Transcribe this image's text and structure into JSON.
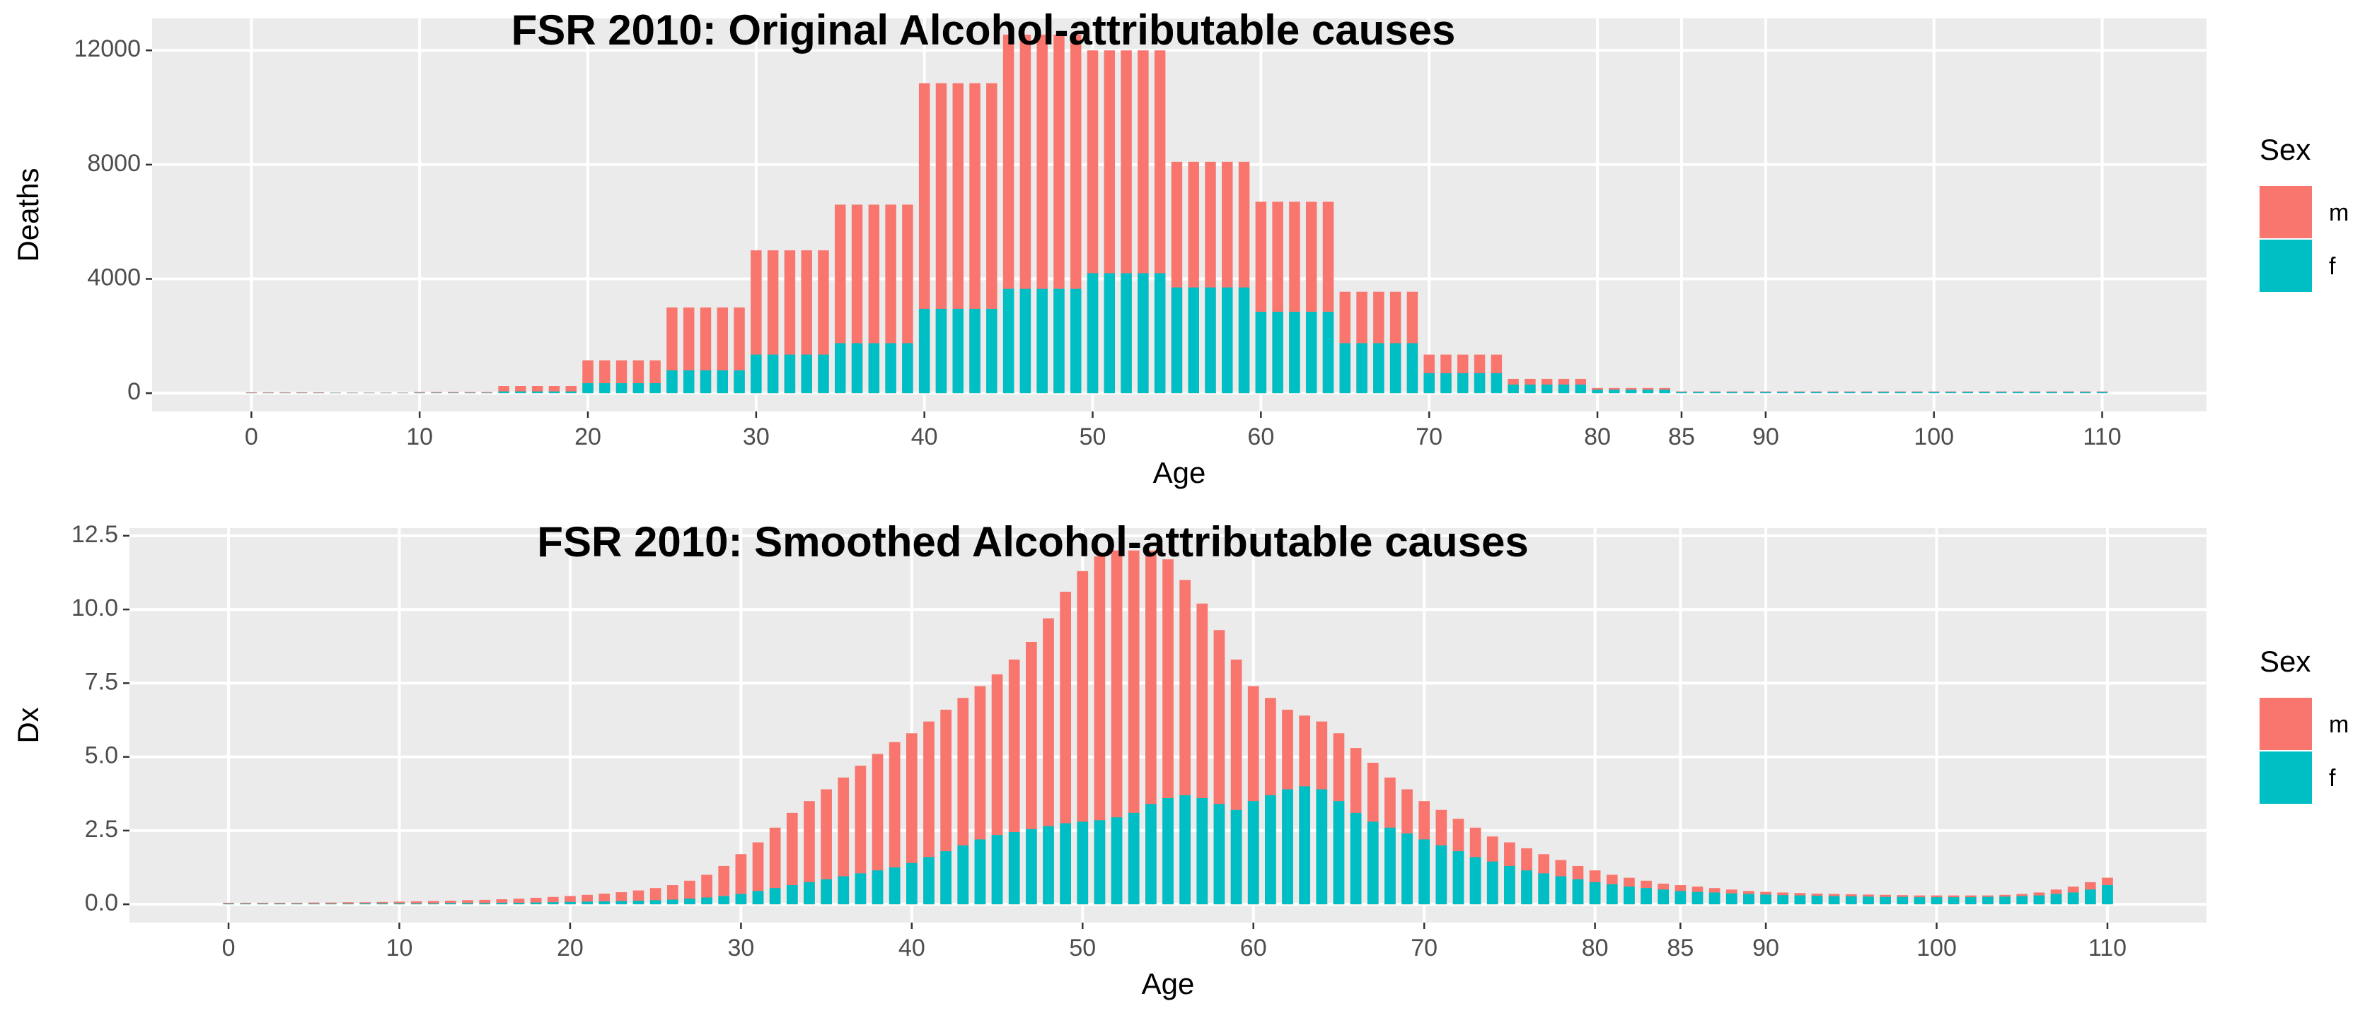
{
  "chart_data": [
    {
      "type": "bar",
      "title": "FSR 2010: Original Alcohol-attributable causes",
      "x_label": "Age",
      "y_label": "Deaths",
      "legend_title": "Sex",
      "grid": true,
      "x": [
        0,
        1,
        2,
        3,
        4,
        5,
        6,
        7,
        8,
        9,
        10,
        11,
        12,
        13,
        14,
        15,
        16,
        17,
        18,
        19,
        20,
        21,
        22,
        23,
        24,
        25,
        26,
        27,
        28,
        29,
        30,
        31,
        32,
        33,
        34,
        35,
        36,
        37,
        38,
        39,
        40,
        41,
        42,
        43,
        44,
        45,
        46,
        47,
        48,
        49,
        50,
        51,
        52,
        53,
        54,
        55,
        56,
        57,
        58,
        59,
        60,
        61,
        62,
        63,
        64,
        65,
        66,
        67,
        68,
        69,
        70,
        71,
        72,
        73,
        74,
        75,
        76,
        77,
        78,
        79,
        80,
        81,
        82,
        83,
        84,
        85,
        86,
        87,
        88,
        89,
        90,
        91,
        92,
        93,
        94,
        95,
        96,
        97,
        98,
        99,
        100,
        101,
        102,
        103,
        104,
        105,
        106,
        107,
        108,
        109,
        110
      ],
      "xlim": [
        -5.9,
        116.2
      ],
      "xticks": [
        0,
        10,
        20,
        30,
        40,
        50,
        60,
        70,
        80,
        85,
        90,
        100,
        110
      ],
      "ylim": [
        -640,
        13120
      ],
      "yticks": [
        0,
        4000,
        8000,
        12000
      ],
      "series": [
        {
          "name": "m",
          "color": "#F8766D",
          "values": [
            30,
            30,
            30,
            30,
            30,
            20,
            20,
            20,
            20,
            20,
            40,
            40,
            40,
            40,
            40,
            250,
            250,
            250,
            250,
            250,
            1150,
            1150,
            1150,
            1150,
            1150,
            3000,
            3000,
            3000,
            3000,
            3000,
            5000,
            5000,
            5000,
            5000,
            5000,
            6600,
            6600,
            6600,
            6600,
            6600,
            10850,
            10850,
            10850,
            10850,
            10850,
            12550,
            12550,
            12550,
            12550,
            12550,
            12000,
            12000,
            12000,
            12000,
            12000,
            8100,
            8100,
            8100,
            8100,
            8100,
            6700,
            6700,
            6700,
            6700,
            6700,
            3550,
            3550,
            3550,
            3550,
            3550,
            1350,
            1350,
            1350,
            1350,
            1350,
            500,
            500,
            500,
            500,
            500,
            180,
            180,
            180,
            180,
            180,
            60,
            60,
            60,
            60,
            60,
            60,
            60,
            60,
            60,
            60,
            60,
            60,
            60,
            60,
            60,
            60,
            60,
            60,
            60,
            60,
            60,
            60,
            60,
            60,
            60,
            60
          ]
        },
        {
          "name": "f",
          "color": "#00BFC4",
          "values": [
            10,
            10,
            10,
            10,
            10,
            10,
            10,
            10,
            10,
            10,
            15,
            15,
            15,
            15,
            15,
            60,
            60,
            60,
            60,
            60,
            350,
            350,
            350,
            350,
            350,
            800,
            800,
            800,
            800,
            800,
            1350,
            1350,
            1350,
            1350,
            1350,
            1750,
            1750,
            1750,
            1750,
            1750,
            2950,
            2950,
            2950,
            2950,
            2950,
            3650,
            3650,
            3650,
            3650,
            3650,
            4200,
            4200,
            4200,
            4200,
            4200,
            3700,
            3700,
            3700,
            3700,
            3700,
            2850,
            2850,
            2850,
            2850,
            2850,
            1750,
            1750,
            1750,
            1750,
            1750,
            700,
            700,
            700,
            700,
            700,
            300,
            300,
            300,
            300,
            300,
            120,
            120,
            120,
            120,
            120,
            40,
            40,
            40,
            40,
            40,
            40,
            40,
            40,
            40,
            40,
            40,
            40,
            40,
            40,
            40,
            40,
            40,
            40,
            40,
            40,
            40,
            40,
            40,
            40,
            40,
            40
          ]
        }
      ]
    },
    {
      "type": "bar",
      "title": "FSR 2010: Smoothed Alcohol-attributable causes",
      "x_label": "Age",
      "y_label": "Dx",
      "legend_title": "Sex",
      "grid": true,
      "x": [
        0,
        1,
        2,
        3,
        4,
        5,
        6,
        7,
        8,
        9,
        10,
        11,
        12,
        13,
        14,
        15,
        16,
        17,
        18,
        19,
        20,
        21,
        22,
        23,
        24,
        25,
        26,
        27,
        28,
        29,
        30,
        31,
        32,
        33,
        34,
        35,
        36,
        37,
        38,
        39,
        40,
        41,
        42,
        43,
        44,
        45,
        46,
        47,
        48,
        49,
        50,
        51,
        52,
        53,
        54,
        55,
        56,
        57,
        58,
        59,
        60,
        61,
        62,
        63,
        64,
        65,
        66,
        67,
        68,
        69,
        70,
        71,
        72,
        73,
        74,
        75,
        76,
        77,
        78,
        79,
        80,
        81,
        82,
        83,
        84,
        85,
        86,
        87,
        88,
        89,
        90,
        91,
        92,
        93,
        94,
        95,
        96,
        97,
        98,
        99,
        100,
        101,
        102,
        103,
        104,
        105,
        106,
        107,
        108,
        109,
        110
      ],
      "xlim": [
        -5.8,
        115.8
      ],
      "xticks": [
        0,
        10,
        20,
        30,
        40,
        50,
        60,
        70,
        80,
        85,
        90,
        100,
        110
      ],
      "ylim": [
        -0.62,
        12.76
      ],
      "yticks": [
        {
          "value": 0,
          "label": "0.0"
        },
        {
          "value": 2.5,
          "label": "2.5"
        },
        {
          "value": 5,
          "label": "5.0"
        },
        {
          "value": 7.5,
          "label": "7.5"
        },
        {
          "value": 10,
          "label": "10.0"
        },
        {
          "value": 12.5,
          "label": "12.5"
        }
      ],
      "series": [
        {
          "name": "m",
          "color": "#F8766D",
          "values": [
            0.05,
            0.05,
            0.05,
            0.05,
            0.05,
            0.06,
            0.06,
            0.07,
            0.07,
            0.08,
            0.09,
            0.1,
            0.11,
            0.12,
            0.14,
            0.15,
            0.17,
            0.19,
            0.22,
            0.25,
            0.28,
            0.32,
            0.36,
            0.41,
            0.47,
            0.55,
            0.65,
            0.8,
            1.0,
            1.3,
            1.7,
            2.1,
            2.6,
            3.1,
            3.5,
            3.9,
            4.3,
            4.7,
            5.1,
            5.5,
            5.8,
            6.2,
            6.6,
            7.0,
            7.4,
            7.8,
            8.3,
            8.9,
            9.7,
            10.6,
            11.3,
            11.8,
            12.0,
            12.0,
            12.0,
            11.7,
            11.0,
            10.2,
            9.3,
            8.3,
            7.4,
            7.0,
            6.6,
            6.4,
            6.2,
            5.8,
            5.3,
            4.8,
            4.3,
            3.9,
            3.5,
            3.2,
            2.9,
            2.6,
            2.3,
            2.1,
            1.9,
            1.7,
            1.5,
            1.3,
            1.15,
            1.0,
            0.9,
            0.8,
            0.7,
            0.65,
            0.6,
            0.55,
            0.5,
            0.45,
            0.42,
            0.4,
            0.38,
            0.36,
            0.35,
            0.34,
            0.33,
            0.32,
            0.31,
            0.3,
            0.3,
            0.3,
            0.3,
            0.3,
            0.32,
            0.35,
            0.4,
            0.5,
            0.6,
            0.75,
            0.9
          ]
        },
        {
          "name": "f",
          "color": "#00BFC4",
          "values": [
            0.02,
            0.02,
            0.02,
            0.02,
            0.02,
            0.02,
            0.02,
            0.02,
            0.03,
            0.03,
            0.03,
            0.03,
            0.03,
            0.04,
            0.04,
            0.04,
            0.05,
            0.05,
            0.06,
            0.07,
            0.08,
            0.09,
            0.1,
            0.11,
            0.12,
            0.14,
            0.16,
            0.19,
            0.23,
            0.28,
            0.35,
            0.45,
            0.55,
            0.65,
            0.75,
            0.85,
            0.95,
            1.05,
            1.15,
            1.25,
            1.4,
            1.6,
            1.8,
            2.0,
            2.2,
            2.35,
            2.45,
            2.55,
            2.65,
            2.75,
            2.8,
            2.85,
            2.95,
            3.1,
            3.4,
            3.6,
            3.7,
            3.6,
            3.4,
            3.2,
            3.5,
            3.7,
            3.9,
            4.0,
            3.9,
            3.5,
            3.1,
            2.8,
            2.6,
            2.4,
            2.2,
            2.0,
            1.8,
            1.6,
            1.45,
            1.3,
            1.15,
            1.05,
            0.95,
            0.85,
            0.75,
            0.68,
            0.6,
            0.55,
            0.5,
            0.45,
            0.42,
            0.4,
            0.37,
            0.35,
            0.33,
            0.31,
            0.3,
            0.29,
            0.28,
            0.27,
            0.26,
            0.25,
            0.25,
            0.24,
            0.24,
            0.24,
            0.24,
            0.25,
            0.26,
            0.28,
            0.3,
            0.35,
            0.4,
            0.5,
            0.65
          ]
        }
      ]
    }
  ]
}
